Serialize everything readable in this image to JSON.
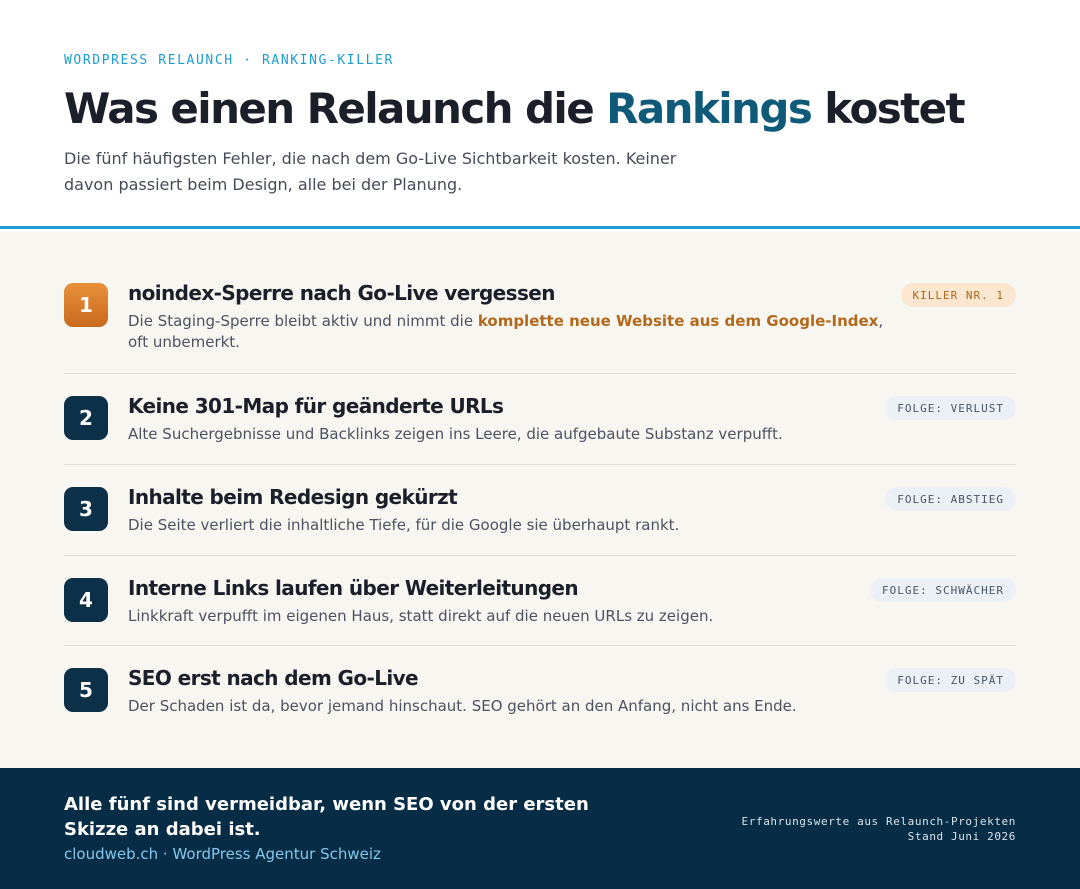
{
  "header": {
    "eyebrow": "WORDPRESS RELAUNCH · RANKING-KILLER",
    "title_before": "Was einen Relaunch die ",
    "title_highlight": "Rankings",
    "title_after": " kostet",
    "subtitle": "Die fünf häufigsten Fehler, die nach dem Go-Live Sichtbarkeit kosten. Keiner davon passiert beim Design, alle bei der Planung."
  },
  "items": [
    {
      "number": "1",
      "title": "noindex-Sperre nach Go-Live vergessen",
      "desc_before": "Die Staging-Sperre bleibt aktiv und nimmt die ",
      "desc_strong": "komplette neue Website aus dem Google-Index",
      "desc_after": ", oft unbemerkt.",
      "badge": "KILLER NR. 1"
    },
    {
      "number": "2",
      "title": "Keine 301-Map für geänderte URLs",
      "desc": "Alte Suchergebnisse und Backlinks zeigen ins Leere, die aufgebaute Substanz verpufft.",
      "badge": "FOLGE: VERLUST"
    },
    {
      "number": "3",
      "title": "Inhalte beim Redesign gekürzt",
      "desc": "Die Seite verliert die inhaltliche Tiefe, für die Google sie überhaupt rankt.",
      "badge": "FOLGE: ABSTIEG"
    },
    {
      "number": "4",
      "title": "Interne Links laufen über Weiterleitungen",
      "desc": "Linkkraft verpufft im eigenen Haus, statt direkt auf die neuen URLs zu zeigen.",
      "badge": "FOLGE: SCHWÄCHER"
    },
    {
      "number": "5",
      "title": "SEO erst nach dem Go-Live",
      "desc": "Der Schaden ist da, bevor jemand hinschaut. SEO gehört an den Anfang, nicht ans Ende.",
      "badge": "FOLGE: ZU SPÄT"
    }
  ],
  "footer": {
    "headline": "Alle fünf sind vermeidbar, wenn SEO von der ersten Skizze an dabei ist.",
    "link": "cloudweb.ch · WordPress Agentur Schweiz",
    "meta_line1": "Erfahrungswerte aus Relaunch-Projekten",
    "meta_line2": "Stand Juni 2026"
  },
  "colors": {
    "accent_blue": "#1b9dd3",
    "title_highlight": "#0f5a78",
    "number_dark": "#0b3048",
    "number_first": "#e8913a",
    "footer_bg": "#062d45",
    "list_bg": "#f8f6f1"
  }
}
